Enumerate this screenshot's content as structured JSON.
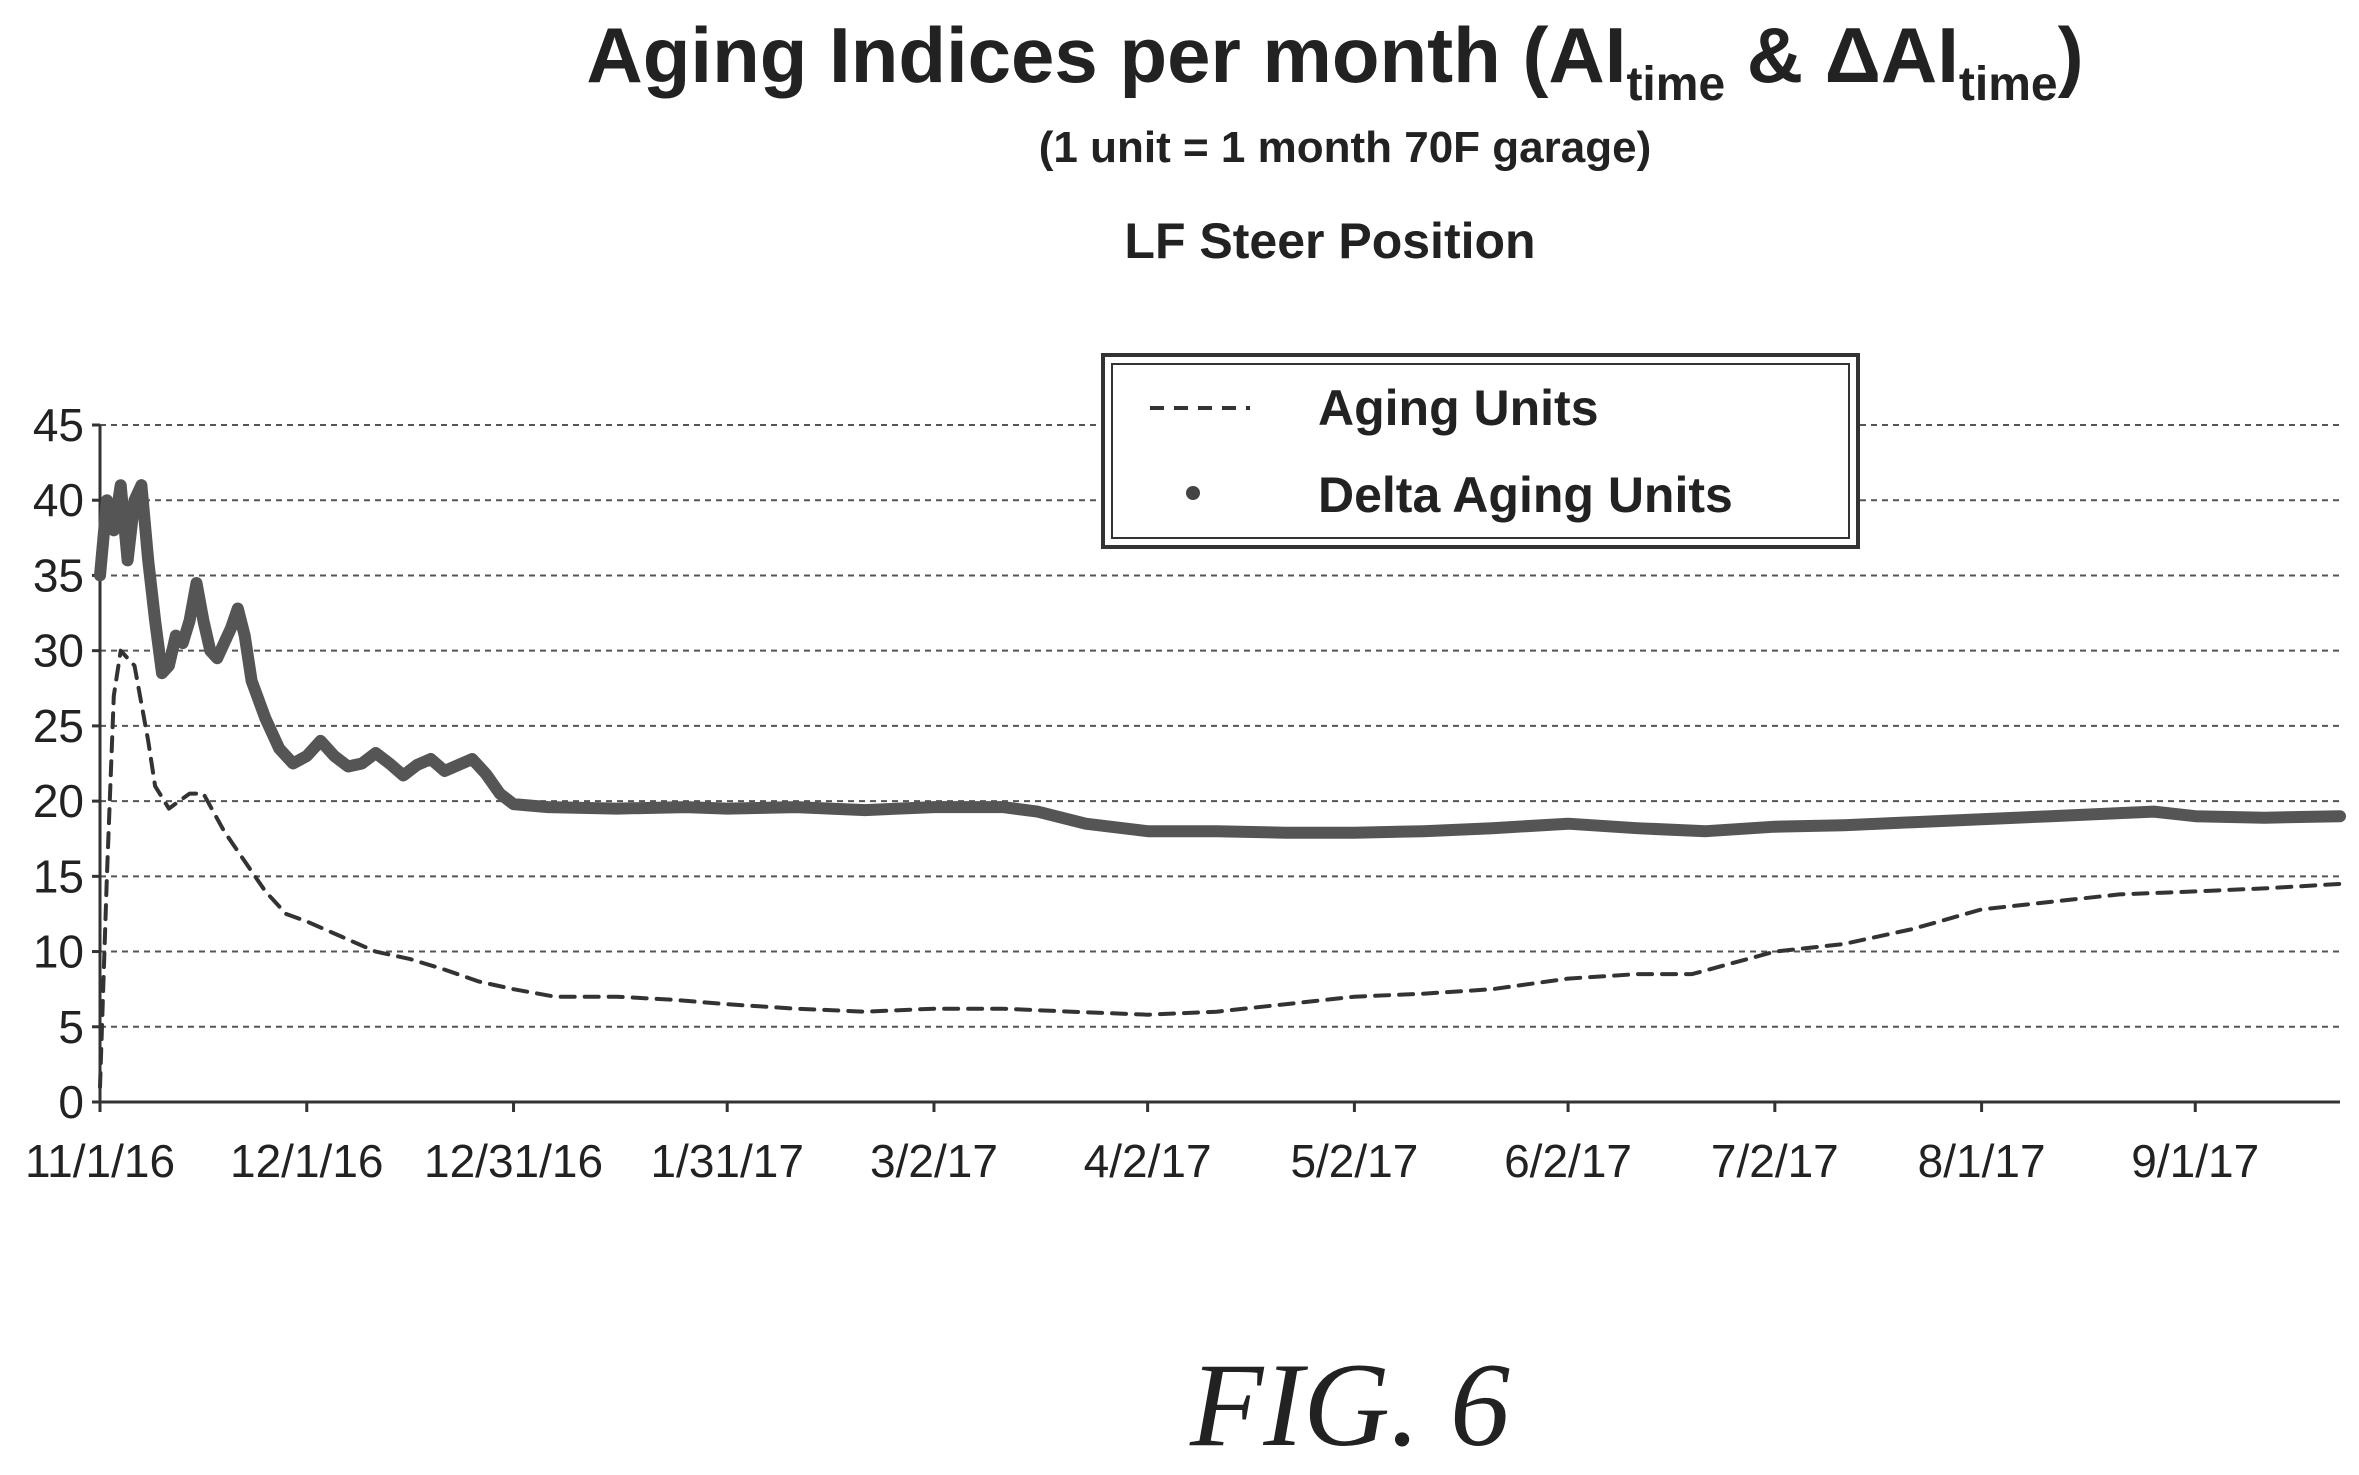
{
  "chart_data": {
    "type": "line",
    "title_main": "Aging Indices per month (AI",
    "title_sub1": "time",
    "title_mid": " & ΔAI",
    "title_sub2": "time",
    "title_end": ")",
    "subtitle": "(1 unit = 1 month 70F garage)",
    "position_label": "LF Steer Position",
    "figure_label": "FIG. 6",
    "xlabel": "",
    "ylabel": "",
    "x_tick_labels": [
      "11/1/16",
      "12/1/16",
      "12/31/16",
      "1/31/17",
      "3/2/17",
      "4/2/17",
      "5/2/17",
      "6/2/17",
      "7/2/17",
      "8/1/17",
      "9/1/17"
    ],
    "y_tick_labels": [
      "0",
      "5",
      "10",
      "15",
      "20",
      "25",
      "30",
      "35",
      "40",
      "45"
    ],
    "ylim": [
      0,
      45
    ],
    "xlim": [
      "2016-11-01",
      "2017-09-22"
    ],
    "grid": "horizontal dashed",
    "legend": "top-right",
    "series": [
      {
        "name": "Aging Units",
        "style": "dashed",
        "color": "#333333",
        "points": [
          [
            "2016-11-01",
            1
          ],
          [
            "2016-11-02",
            15
          ],
          [
            "2016-11-03",
            27
          ],
          [
            "2016-11-04",
            30
          ],
          [
            "2016-11-06",
            29
          ],
          [
            "2016-11-08",
            24
          ],
          [
            "2016-11-09",
            21
          ],
          [
            "2016-11-11",
            19.5
          ],
          [
            "2016-11-14",
            20.5
          ],
          [
            "2016-11-16",
            20.5
          ],
          [
            "2016-11-19",
            18
          ],
          [
            "2016-11-22",
            16
          ],
          [
            "2016-11-25",
            14
          ],
          [
            "2016-11-28",
            12.5
          ],
          [
            "2016-12-01",
            12
          ],
          [
            "2016-12-06",
            11
          ],
          [
            "2016-12-11",
            10
          ],
          [
            "2016-12-16",
            9.5
          ],
          [
            "2016-12-21",
            8.8
          ],
          [
            "2016-12-26",
            8
          ],
          [
            "2016-12-31",
            7.5
          ],
          [
            "2017-01-06",
            7
          ],
          [
            "2017-01-15",
            7
          ],
          [
            "2017-01-23",
            6.8
          ],
          [
            "2017-01-31",
            6.5
          ],
          [
            "2017-02-10",
            6.2
          ],
          [
            "2017-02-20",
            6
          ],
          [
            "2017-03-02",
            6.2
          ],
          [
            "2017-03-12",
            6.2
          ],
          [
            "2017-03-22",
            6
          ],
          [
            "2017-04-02",
            5.8
          ],
          [
            "2017-04-12",
            6
          ],
          [
            "2017-04-22",
            6.5
          ],
          [
            "2017-05-02",
            7
          ],
          [
            "2017-05-12",
            7.2
          ],
          [
            "2017-05-22",
            7.5
          ],
          [
            "2017-06-02",
            8.2
          ],
          [
            "2017-06-12",
            8.5
          ],
          [
            "2017-06-20",
            8.5
          ],
          [
            "2017-07-02",
            10
          ],
          [
            "2017-07-12",
            10.5
          ],
          [
            "2017-07-22",
            11.5
          ],
          [
            "2017-08-01",
            12.8
          ],
          [
            "2017-08-11",
            13.3
          ],
          [
            "2017-08-21",
            13.8
          ],
          [
            "2017-09-01",
            14
          ],
          [
            "2017-09-11",
            14.2
          ],
          [
            "2017-09-22",
            14.5
          ]
        ]
      },
      {
        "name": "Delta Aging Units",
        "style": "thick",
        "color": "#555555",
        "points": [
          [
            "2016-11-01",
            35
          ],
          [
            "2016-11-02",
            40
          ],
          [
            "2016-11-03",
            38
          ],
          [
            "2016-11-04",
            41
          ],
          [
            "2016-11-05",
            36
          ],
          [
            "2016-11-06",
            40
          ],
          [
            "2016-11-07",
            41
          ],
          [
            "2016-11-08",
            36
          ],
          [
            "2016-11-09",
            32
          ],
          [
            "2016-11-10",
            28.5
          ],
          [
            "2016-11-11",
            29
          ],
          [
            "2016-11-12",
            31
          ],
          [
            "2016-11-13",
            30.5
          ],
          [
            "2016-11-14",
            32
          ],
          [
            "2016-11-15",
            34.5
          ],
          [
            "2016-11-16",
            32
          ],
          [
            "2016-11-17",
            30
          ],
          [
            "2016-11-18",
            29.5
          ],
          [
            "2016-11-19",
            30.5
          ],
          [
            "2016-11-20",
            31.5
          ],
          [
            "2016-11-21",
            32.8
          ],
          [
            "2016-11-22",
            31
          ],
          [
            "2016-11-23",
            28
          ],
          [
            "2016-11-25",
            25.5
          ],
          [
            "2016-11-27",
            23.5
          ],
          [
            "2016-11-29",
            22.5
          ],
          [
            "2016-12-01",
            23
          ],
          [
            "2016-12-03",
            24
          ],
          [
            "2016-12-05",
            23
          ],
          [
            "2016-12-07",
            22.3
          ],
          [
            "2016-12-09",
            22.5
          ],
          [
            "2016-12-11",
            23.2
          ],
          [
            "2016-12-13",
            22.5
          ],
          [
            "2016-12-15",
            21.7
          ],
          [
            "2016-12-17",
            22.4
          ],
          [
            "2016-12-19",
            22.8
          ],
          [
            "2016-12-21",
            22
          ],
          [
            "2016-12-23",
            22.4
          ],
          [
            "2016-12-25",
            22.8
          ],
          [
            "2016-12-27",
            21.8
          ],
          [
            "2016-12-29",
            20.5
          ],
          [
            "2016-12-31",
            19.8
          ],
          [
            "2017-01-05",
            19.6
          ],
          [
            "2017-01-15",
            19.5
          ],
          [
            "2017-01-25",
            19.6
          ],
          [
            "2017-01-31",
            19.5
          ],
          [
            "2017-02-10",
            19.6
          ],
          [
            "2017-02-20",
            19.4
          ],
          [
            "2017-03-02",
            19.6
          ],
          [
            "2017-03-12",
            19.6
          ],
          [
            "2017-03-17",
            19.3
          ],
          [
            "2017-03-24",
            18.5
          ],
          [
            "2017-04-02",
            18
          ],
          [
            "2017-04-12",
            18
          ],
          [
            "2017-04-22",
            17.9
          ],
          [
            "2017-05-02",
            17.9
          ],
          [
            "2017-05-12",
            18
          ],
          [
            "2017-05-22",
            18.2
          ],
          [
            "2017-06-02",
            18.5
          ],
          [
            "2017-06-12",
            18.2
          ],
          [
            "2017-06-22",
            18
          ],
          [
            "2017-07-02",
            18.3
          ],
          [
            "2017-07-12",
            18.4
          ],
          [
            "2017-07-22",
            18.6
          ],
          [
            "2017-08-01",
            18.8
          ],
          [
            "2017-08-11",
            19
          ],
          [
            "2017-08-21",
            19.2
          ],
          [
            "2017-08-26",
            19.3
          ],
          [
            "2017-09-01",
            19
          ],
          [
            "2017-09-11",
            18.9
          ],
          [
            "2017-09-22",
            19
          ]
        ]
      }
    ]
  }
}
